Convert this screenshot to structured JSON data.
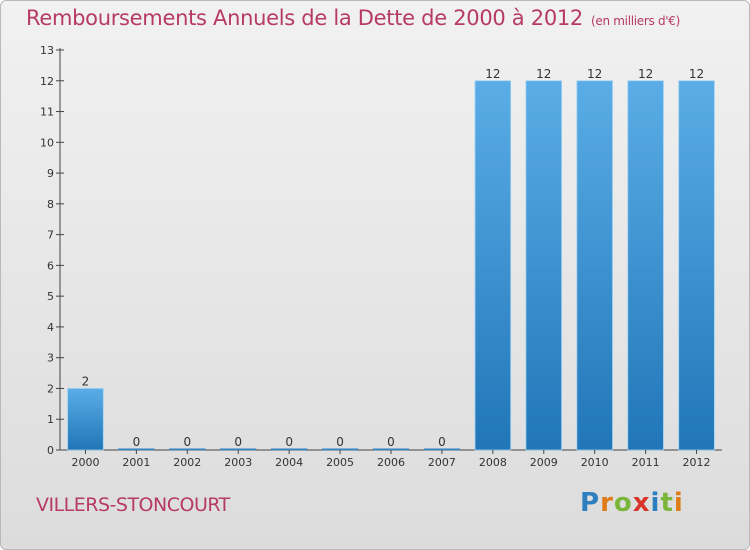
{
  "title": "Remboursements Annuels de la Dette de 2000 à 2012",
  "unit": "(en milliers d'€)",
  "town": "VILLERS-STONCOURT",
  "logo": {
    "text": "Proxiti",
    "letters": [
      {
        "ch": "P",
        "color": "#2e7fbf"
      },
      {
        "ch": "r",
        "color": "#e07b1a"
      },
      {
        "ch": "o",
        "color": "#7bb63c"
      },
      {
        "ch": "x",
        "color": "#d9362b"
      },
      {
        "ch": "i",
        "color": "#2e7fbf"
      },
      {
        "ch": "t",
        "color": "#7bb63c"
      },
      {
        "ch": "i",
        "color": "#e07b1a"
      }
    ]
  },
  "colors": {
    "bar_top": "#5aade6",
    "bar_bottom": "#2176b8",
    "title": "#b73a63"
  },
  "chart_data": {
    "type": "bar",
    "title": "Remboursements Annuels de la Dette de 2000 à 2012",
    "categories": [
      "2000",
      "2001",
      "2002",
      "2003",
      "2004",
      "2005",
      "2006",
      "2007",
      "2008",
      "2009",
      "2010",
      "2011",
      "2012"
    ],
    "values": [
      2,
      0,
      0,
      0,
      0,
      0,
      0,
      0,
      12,
      12,
      12,
      12,
      12
    ],
    "ylim": [
      0,
      13
    ],
    "yticks": [
      0,
      1,
      2,
      3,
      4,
      5,
      6,
      7,
      8,
      9,
      10,
      11,
      12,
      13
    ],
    "grid": false
  }
}
